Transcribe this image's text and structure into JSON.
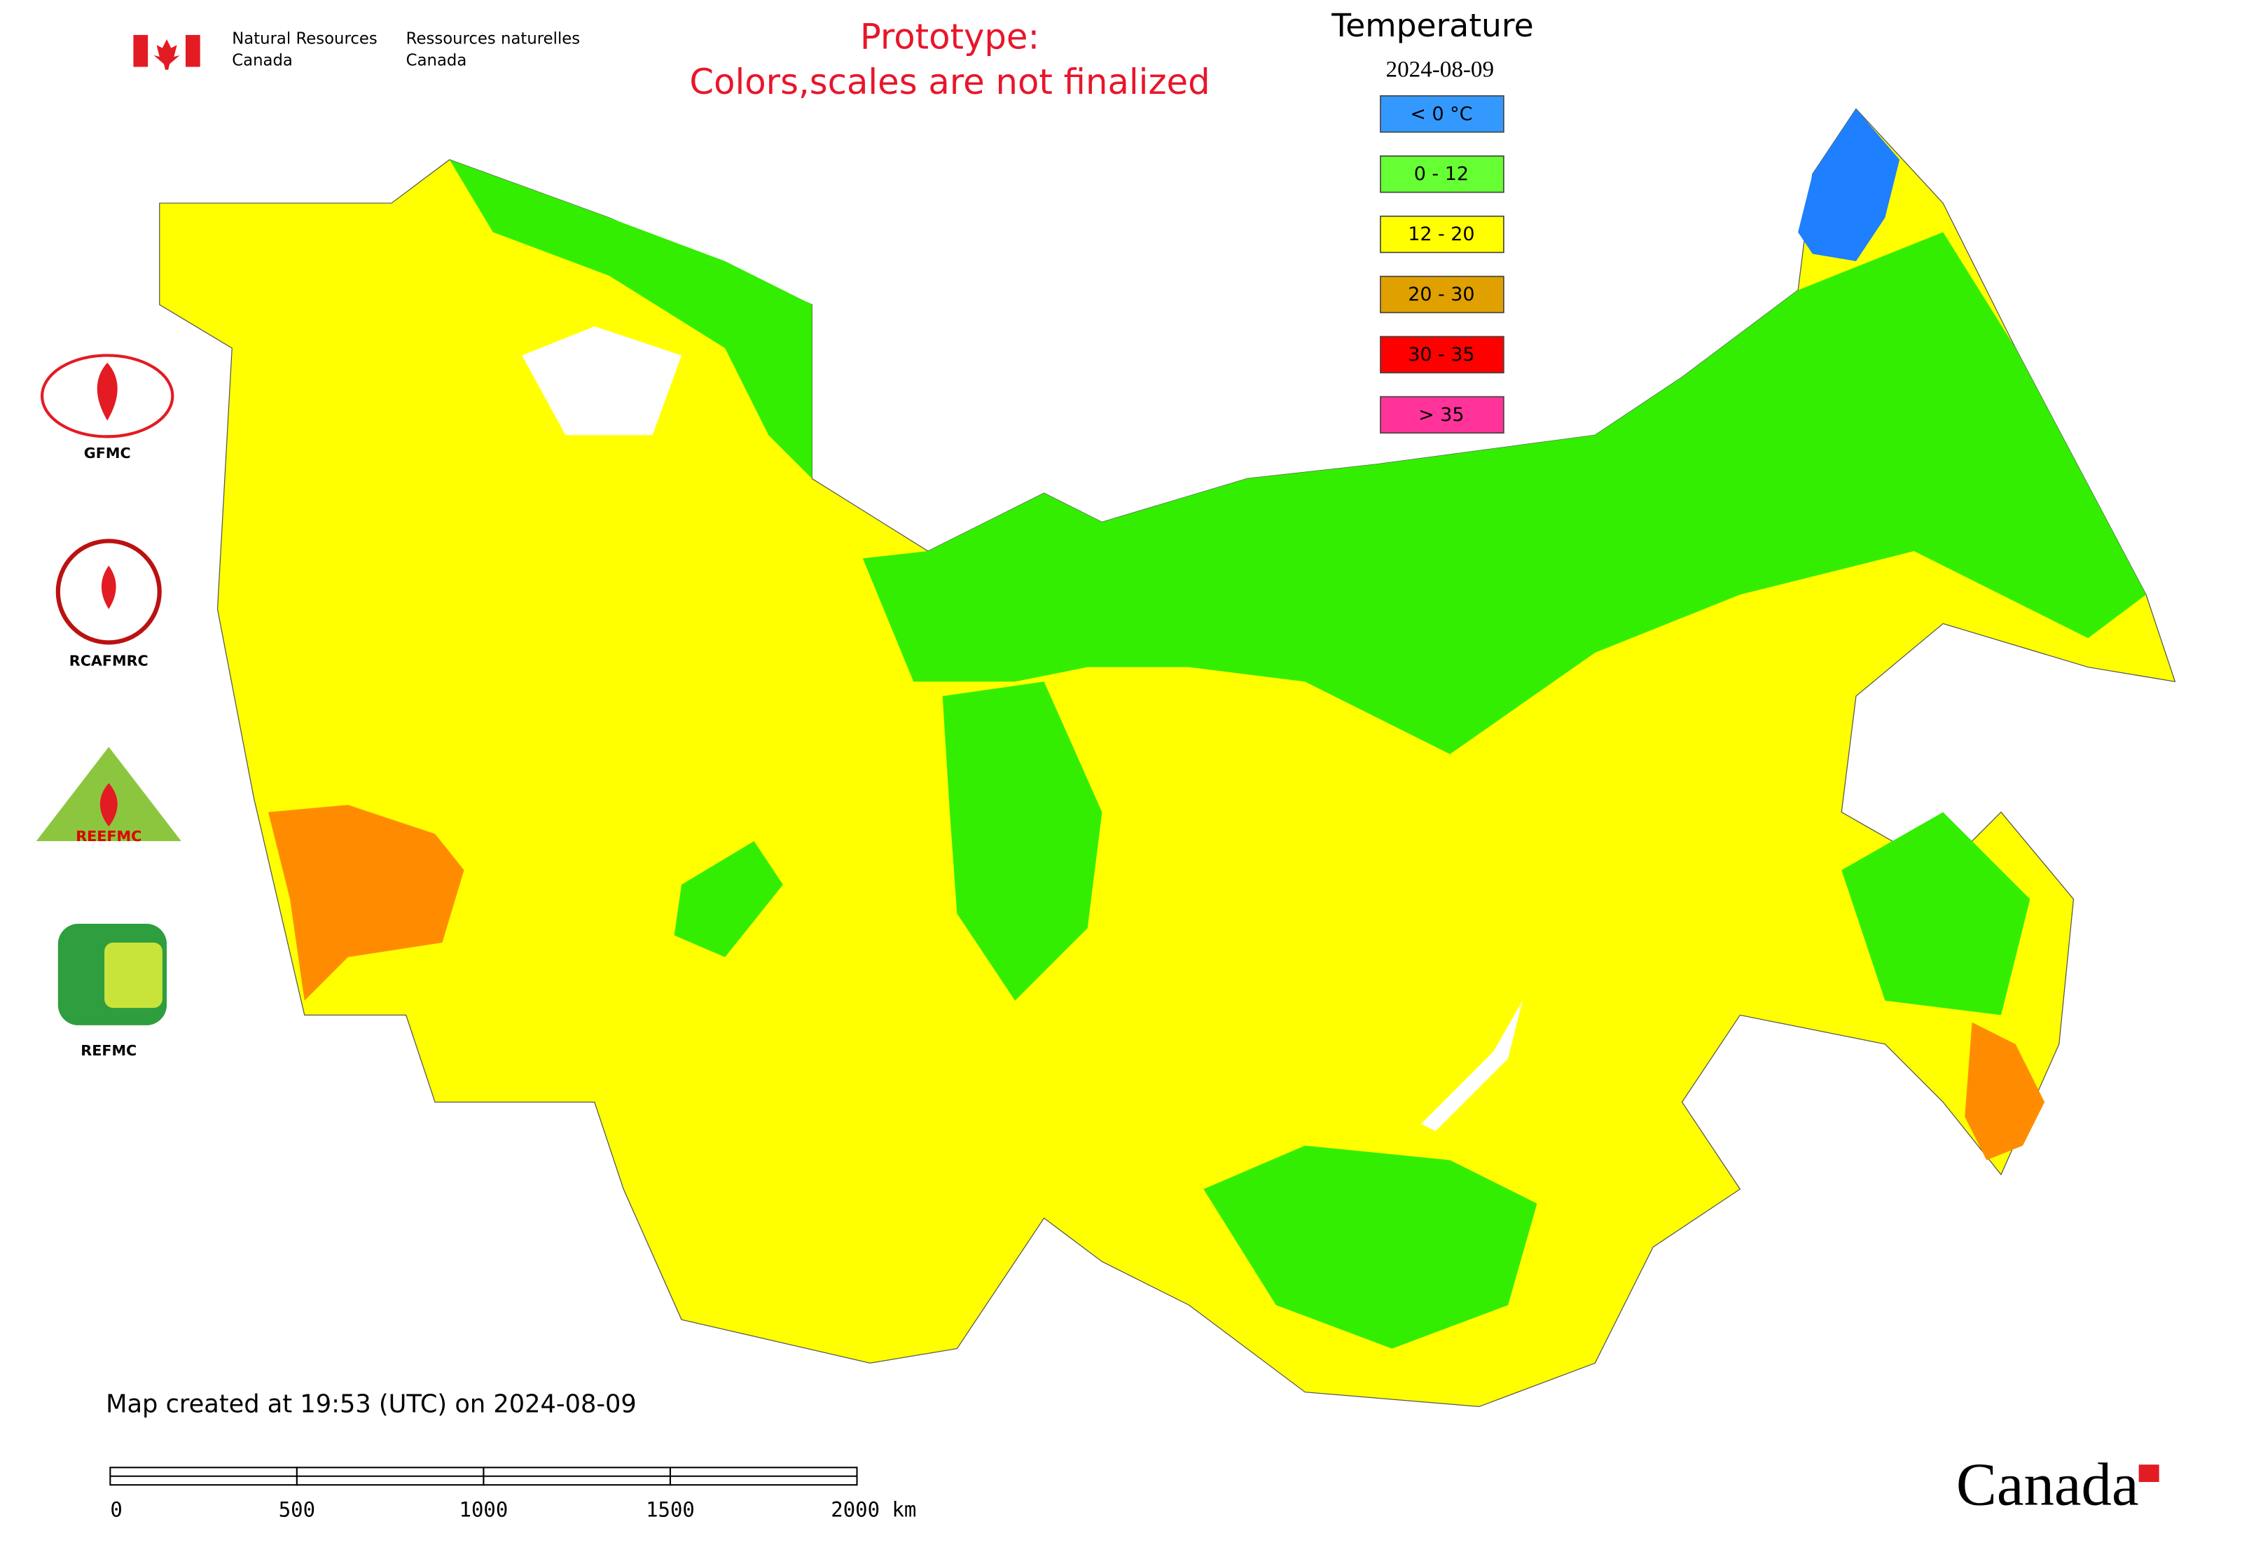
{
  "header": {
    "agency_en": [
      "Natural Resources",
      "Canada"
    ],
    "agency_fr": [
      "Ressources naturelles",
      "Canada"
    ],
    "prototype_note": [
      "Prototype:",
      "Colors,scales are not finalized"
    ]
  },
  "legend": {
    "title": "Temperature",
    "date": "2024-08-09",
    "items": [
      {
        "label": "< 0 °C",
        "color": "#3399ff"
      },
      {
        "label": "0 - 12",
        "color": "#66ff33"
      },
      {
        "label": "12 - 20",
        "color": "#ffff00"
      },
      {
        "label": "20 - 30",
        "color": "#e0a000"
      },
      {
        "label": "30 - 35",
        "color": "#ff0000"
      },
      {
        "label": "> 35",
        "color": "#ff3399"
      }
    ]
  },
  "logos": [
    "GFMC",
    "RCAFMRC",
    "REEFMC",
    "REFMC"
  ],
  "footer": {
    "created": "Map created at 19:53 (UTC) on 2024-08-09",
    "scale_labels": [
      "0",
      "500",
      "1000",
      "1500",
      "2000 km"
    ],
    "wordmark": "Canada"
  }
}
